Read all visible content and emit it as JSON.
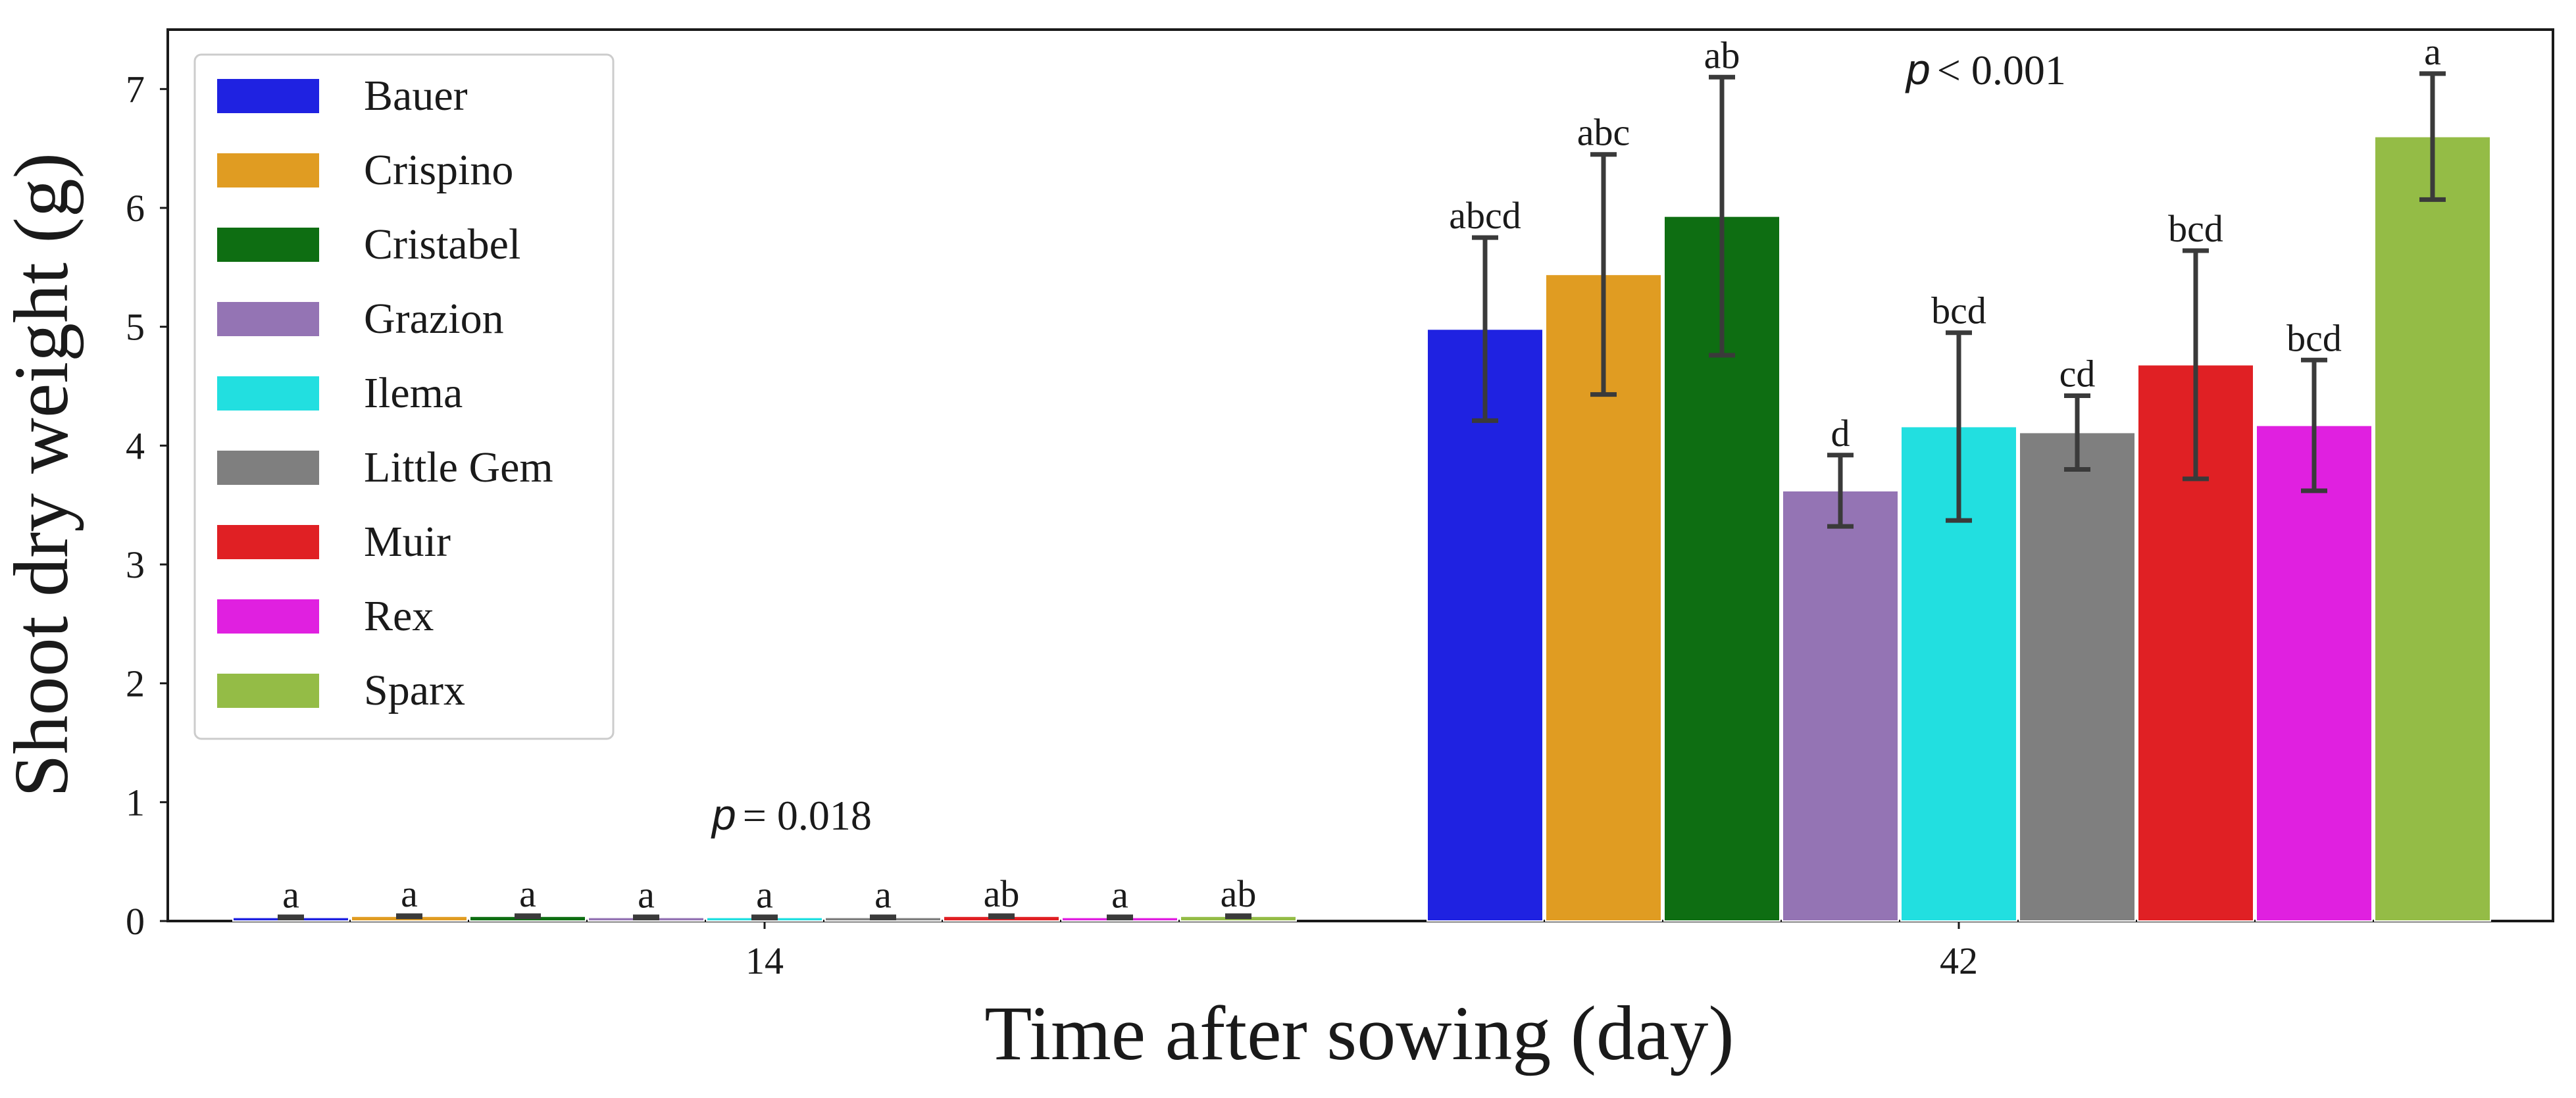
{
  "chart_data": {
    "type": "bar",
    "xlabel": "Time after sowing (day)",
    "ylabel": "Shoot dry weight (g)",
    "ylim": [
      0,
      7.5
    ],
    "yticks": [
      0,
      1,
      2,
      3,
      4,
      5,
      6,
      7
    ],
    "categories": [
      "14",
      "42"
    ],
    "legend": {
      "position": "top-left"
    },
    "group_annotations": [
      {
        "category": "14",
        "p_symbol": "p",
        "p_text": "= 0.018",
        "anchor_value": 0.88
      },
      {
        "category": "42",
        "p_symbol": "p",
        "p_text": "< 0.001",
        "anchor_value": 7.15
      }
    ],
    "series": [
      {
        "name": "Bauer",
        "color": "#1f22e1",
        "values": [
          0.03,
          4.98
        ],
        "errors": [
          0.005,
          0.77
        ],
        "letters": [
          "a",
          "abcd"
        ]
      },
      {
        "name": "Crispino",
        "color": "#e09c22",
        "values": [
          0.04,
          5.44
        ],
        "errors": [
          0.005,
          1.01
        ],
        "letters": [
          "a",
          "abc"
        ]
      },
      {
        "name": "Cristabel",
        "color": "#0e6e12",
        "values": [
          0.04,
          5.93
        ],
        "errors": [
          0.005,
          1.17
        ],
        "letters": [
          "a",
          "ab"
        ]
      },
      {
        "name": "Grazion",
        "color": "#9474b4",
        "values": [
          0.03,
          3.62
        ],
        "errors": [
          0.005,
          0.3
        ],
        "letters": [
          "a",
          "d"
        ]
      },
      {
        "name": "Ilema",
        "color": "#22dfe0",
        "values": [
          0.03,
          4.16
        ],
        "errors": [
          0.005,
          0.79
        ],
        "letters": [
          "a",
          "bcd"
        ]
      },
      {
        "name": "Little Gem",
        "color": "#7f7f7f",
        "values": [
          0.03,
          4.11
        ],
        "errors": [
          0.005,
          0.31
        ],
        "letters": [
          "a",
          "cd"
        ]
      },
      {
        "name": "Muir",
        "color": "#e02024",
        "values": [
          0.04,
          4.68
        ],
        "errors": [
          0.005,
          0.96
        ],
        "letters": [
          "ab",
          "bcd"
        ]
      },
      {
        "name": "Rex",
        "color": "#e020e0",
        "values": [
          0.03,
          4.17
        ],
        "errors": [
          0.005,
          0.55
        ],
        "letters": [
          "a",
          "bcd"
        ]
      },
      {
        "name": "Sparx",
        "color": "#94bc46",
        "values": [
          0.04,
          6.6
        ],
        "errors": [
          0.005,
          0.53
        ],
        "letters": [
          "ab",
          "a"
        ]
      }
    ]
  }
}
